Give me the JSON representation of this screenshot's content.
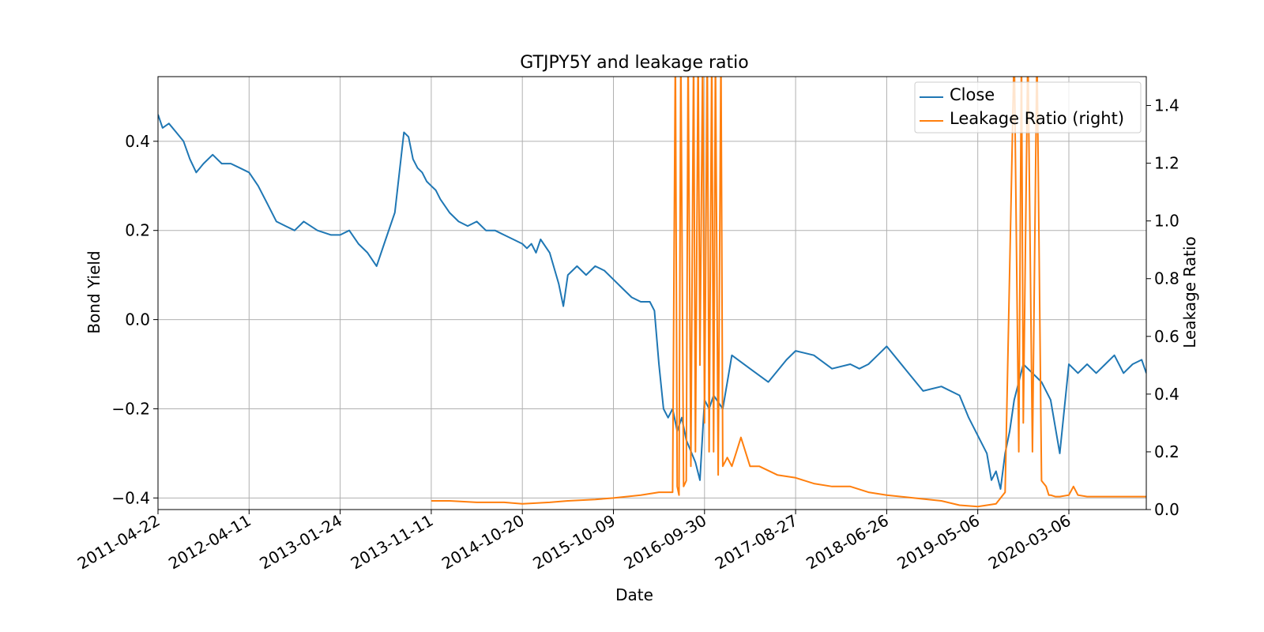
{
  "chart_data": {
    "type": "line",
    "title": "GTJPY5Y and leakage ratio",
    "xlabel": "Date",
    "ylabel": "Bond Yield",
    "ylabel_right": "Leakage Ratio",
    "x_tick_labels": [
      "2011-04-22",
      "2012-04-11",
      "2013-01-24",
      "2013-11-11",
      "2014-10-20",
      "2015-10-09",
      "2016-09-30",
      "2017-08-27",
      "2018-06-26",
      "2019-05-06",
      "2020-03-06"
    ],
    "y_ticks": [
      "0.4",
      "0.2",
      "0.0",
      "−0.2",
      "−0.4"
    ],
    "y_right_ticks": [
      "1.4",
      "1.2",
      "1.0",
      "0.8",
      "0.6",
      "0.4",
      "0.2",
      "0.0"
    ],
    "ylim": [
      -0.426,
      0.545
    ],
    "ylim_right": [
      0,
      1.5
    ],
    "grid": true,
    "legend_position": "top-right",
    "legend": [
      "Close",
      "Leakage Ratio (right)"
    ],
    "colors": {
      "close": "#1f77b4",
      "leakage": "#ff7f0e"
    },
    "series": [
      {
        "name": "Close",
        "axis": "left",
        "x": [
          0,
          0.05,
          0.12,
          0.2,
          0.28,
          0.35,
          0.42,
          0.5,
          0.6,
          0.7,
          0.8,
          0.9,
          1.0,
          1.1,
          1.2,
          1.3,
          1.4,
          1.5,
          1.6,
          1.75,
          1.9,
          2.0,
          2.1,
          2.2,
          2.3,
          2.4,
          2.5,
          2.6,
          2.7,
          2.75,
          2.8,
          2.85,
          2.9,
          2.95,
          3.0,
          3.05,
          3.1,
          3.2,
          3.3,
          3.4,
          3.5,
          3.6,
          3.7,
          3.8,
          3.9,
          4.0,
          4.05,
          4.1,
          4.15,
          4.2,
          4.3,
          4.4,
          4.45,
          4.5,
          4.6,
          4.7,
          4.8,
          4.9,
          5.0,
          5.1,
          5.2,
          5.3,
          5.4,
          5.45,
          5.5,
          5.55,
          5.6,
          5.65,
          5.7,
          5.75,
          5.8,
          5.9,
          5.95,
          6.0,
          6.05,
          6.1,
          6.2,
          6.3,
          6.5,
          6.7,
          6.9,
          7.0,
          7.2,
          7.4,
          7.6,
          7.7,
          7.8,
          7.9,
          8.0,
          8.2,
          8.4,
          8.6,
          8.8,
          8.9,
          9.0,
          9.1,
          9.15,
          9.2,
          9.25,
          9.3,
          9.35,
          9.4,
          9.5,
          9.6,
          9.7,
          9.8,
          9.9,
          10.0,
          10.1,
          10.2,
          10.3,
          10.4,
          10.5,
          10.6,
          10.7,
          10.8,
          10.85
        ],
        "y": [
          0.46,
          0.43,
          0.44,
          0.42,
          0.4,
          0.36,
          0.33,
          0.35,
          0.37,
          0.35,
          0.35,
          0.34,
          0.33,
          0.3,
          0.26,
          0.22,
          0.21,
          0.2,
          0.22,
          0.2,
          0.19,
          0.19,
          0.2,
          0.17,
          0.15,
          0.12,
          0.18,
          0.24,
          0.42,
          0.41,
          0.36,
          0.34,
          0.33,
          0.31,
          0.3,
          0.29,
          0.27,
          0.24,
          0.22,
          0.21,
          0.22,
          0.2,
          0.2,
          0.19,
          0.18,
          0.17,
          0.16,
          0.17,
          0.15,
          0.18,
          0.15,
          0.08,
          0.03,
          0.1,
          0.12,
          0.1,
          0.12,
          0.11,
          0.09,
          0.07,
          0.05,
          0.04,
          0.04,
          0.02,
          -0.1,
          -0.2,
          -0.22,
          -0.2,
          -0.25,
          -0.22,
          -0.27,
          -0.32,
          -0.36,
          -0.18,
          -0.2,
          -0.17,
          -0.2,
          -0.08,
          -0.11,
          -0.14,
          -0.09,
          -0.07,
          -0.08,
          -0.11,
          -0.1,
          -0.11,
          -0.1,
          -0.08,
          -0.06,
          -0.11,
          -0.16,
          -0.15,
          -0.17,
          -0.22,
          -0.26,
          -0.3,
          -0.36,
          -0.34,
          -0.38,
          -0.3,
          -0.25,
          -0.18,
          -0.1,
          -0.12,
          -0.14,
          -0.18,
          -0.3,
          -0.1,
          -0.12,
          -0.1,
          -0.12,
          -0.1,
          -0.08,
          -0.12,
          -0.1,
          -0.09,
          -0.12
        ],
        "color": "#1f77b4"
      },
      {
        "name": "Leakage Ratio (right)",
        "axis": "right",
        "x": [
          3.0,
          3.2,
          3.5,
          3.8,
          4.0,
          4.3,
          4.5,
          4.8,
          5.0,
          5.3,
          5.5,
          5.65,
          5.68,
          5.7,
          5.72,
          5.74,
          5.77,
          5.8,
          5.82,
          5.85,
          5.88,
          5.9,
          5.93,
          5.95,
          5.98,
          6.0,
          6.03,
          6.05,
          6.08,
          6.1,
          6.12,
          6.15,
          6.18,
          6.2,
          6.25,
          6.3,
          6.35,
          6.4,
          6.5,
          6.6,
          6.8,
          7.0,
          7.2,
          7.4,
          7.6,
          7.8,
          8.0,
          8.3,
          8.6,
          8.8,
          9.0,
          9.2,
          9.3,
          9.4,
          9.45,
          9.48,
          9.5,
          9.55,
          9.6,
          9.65,
          9.7,
          9.75,
          9.78,
          9.8,
          9.85,
          9.9,
          10.0,
          10.05,
          10.1,
          10.2,
          10.4,
          10.6,
          10.8,
          10.85
        ],
        "y": [
          0.03,
          0.03,
          0.025,
          0.025,
          0.02,
          0.025,
          0.03,
          0.035,
          0.04,
          0.05,
          0.06,
          0.06,
          1.6,
          0.08,
          0.05,
          1.6,
          0.08,
          0.1,
          1.6,
          0.15,
          1.6,
          0.2,
          1.6,
          0.5,
          1.6,
          0.3,
          1.6,
          0.2,
          1.6,
          0.2,
          1.6,
          0.12,
          1.6,
          0.15,
          0.18,
          0.15,
          0.2,
          0.25,
          0.15,
          0.15,
          0.12,
          0.11,
          0.09,
          0.08,
          0.08,
          0.06,
          0.05,
          0.04,
          0.03,
          0.015,
          0.01,
          0.02,
          0.06,
          1.6,
          0.2,
          1.6,
          0.3,
          1.6,
          0.2,
          1.6,
          0.1,
          0.08,
          0.05,
          0.05,
          0.045,
          0.045,
          0.05,
          0.08,
          0.05,
          0.045,
          0.045,
          0.045,
          0.045,
          0.045
        ],
        "color": "#ff7f0e"
      }
    ]
  }
}
